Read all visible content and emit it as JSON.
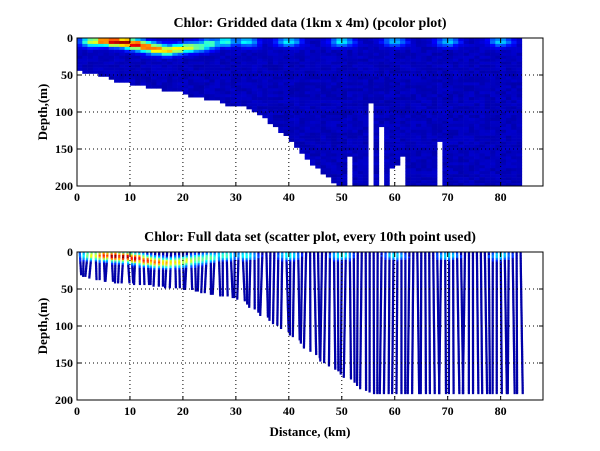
{
  "chart_data": [
    {
      "type": "heatmap",
      "title": "Chlor: Gridded data (1km x 4m) (pcolor plot)",
      "xlabel": "",
      "ylabel": "Depth,(m)",
      "xlim": [
        0,
        88
      ],
      "ylim": [
        200,
        0
      ],
      "y_inverted": true,
      "grid": true,
      "xticks": [
        "0",
        "10",
        "20",
        "30",
        "40",
        "50",
        "60",
        "70",
        "80"
      ],
      "yticks": [
        "0",
        "50",
        "100",
        "150",
        "200"
      ],
      "colormap": [
        "#00008f",
        "#0000ff",
        "#0080ff",
        "#00ffff",
        "#80ff80",
        "#ffff00",
        "#ff8000",
        "#ff0000",
        "#800000"
      ],
      "background_color": "#00008f",
      "bottom_profile": [
        [
          0,
          42
        ],
        [
          2,
          45
        ],
        [
          4,
          48
        ],
        [
          6,
          52
        ],
        [
          8,
          58
        ],
        [
          10,
          60
        ],
        [
          12,
          62
        ],
        [
          14,
          65
        ],
        [
          16,
          68
        ],
        [
          18,
          70
        ],
        [
          20,
          72
        ],
        [
          22,
          78
        ],
        [
          24,
          80
        ],
        [
          26,
          82
        ],
        [
          28,
          85
        ],
        [
          29,
          95
        ],
        [
          30,
          88
        ],
        [
          32,
          92
        ],
        [
          34,
          100
        ],
        [
          36,
          110
        ],
        [
          38,
          122
        ],
        [
          40,
          135
        ],
        [
          42,
          150
        ],
        [
          44,
          165
        ],
        [
          46,
          178
        ],
        [
          48,
          190
        ],
        [
          50,
          200
        ],
        [
          84,
          200
        ]
      ],
      "right_edge_km": 84,
      "data_gaps": [
        [
          51,
          52,
          160
        ],
        [
          55,
          56,
          85
        ],
        [
          57,
          58,
          120
        ],
        [
          59,
          60,
          175
        ],
        [
          60,
          61,
          170
        ],
        [
          61,
          62,
          160
        ],
        [
          68,
          69,
          140
        ]
      ],
      "high_concentration_band": [
        [
          3,
          5,
          0.6
        ],
        [
          5,
          4,
          0.85
        ],
        [
          7,
          5,
          1.0
        ],
        [
          9,
          6,
          1.0
        ],
        [
          11,
          9,
          0.95
        ],
        [
          13,
          12,
          0.85
        ],
        [
          15,
          15,
          0.8
        ],
        [
          17,
          17,
          0.7
        ],
        [
          19,
          15,
          0.65
        ],
        [
          21,
          13,
          0.6
        ],
        [
          23,
          12,
          0.5
        ],
        [
          25,
          8,
          0.45
        ],
        [
          28,
          5,
          0.4
        ],
        [
          32,
          5,
          0.35
        ],
        [
          40,
          5,
          0.35
        ],
        [
          50,
          5,
          0.35
        ],
        [
          60,
          5,
          0.3
        ],
        [
          70,
          5,
          0.3
        ],
        [
          80,
          5,
          0.3
        ]
      ]
    },
    {
      "type": "scatter",
      "title": "Chlor: Full data set (scatter plot, every 10th point used)",
      "xlabel": "Distance, (km)",
      "ylabel": "Depth,(m)",
      "xlim": [
        0,
        88
      ],
      "ylim": [
        200,
        0
      ],
      "y_inverted": true,
      "grid": true,
      "xticks": [
        "0",
        "10",
        "20",
        "30",
        "40",
        "50",
        "60",
        "70",
        "80"
      ],
      "yticks": [
        "0",
        "50",
        "100",
        "150",
        "200"
      ],
      "colormap": [
        "#00008f",
        "#0000ff",
        "#0080ff",
        "#00ffff",
        "#80ff80",
        "#ffff00",
        "#ff8000",
        "#ff0000",
        "#800000"
      ],
      "base_color": "#0000a8",
      "bottom_profile": [
        [
          0,
          30
        ],
        [
          2,
          33
        ],
        [
          4,
          38
        ],
        [
          6,
          40
        ],
        [
          8,
          42
        ],
        [
          10,
          42
        ],
        [
          12,
          44
        ],
        [
          14,
          45
        ],
        [
          16,
          47
        ],
        [
          18,
          48
        ],
        [
          20,
          50
        ],
        [
          22,
          52
        ],
        [
          24,
          55
        ],
        [
          26,
          58
        ],
        [
          28,
          60
        ],
        [
          30,
          62
        ],
        [
          32,
          70
        ],
        [
          34,
          80
        ],
        [
          36,
          90
        ],
        [
          38,
          100
        ],
        [
          40,
          110
        ],
        [
          42,
          120
        ],
        [
          44,
          135
        ],
        [
          46,
          145
        ],
        [
          48,
          155
        ],
        [
          50,
          165
        ],
        [
          52,
          175
        ],
        [
          54,
          185
        ],
        [
          56,
          192
        ],
        [
          84,
          192
        ]
      ],
      "cast_spacing_km": 1.5,
      "right_edge_km": 84,
      "high_concentration_band": [
        [
          3,
          5,
          0.6
        ],
        [
          5,
          5,
          0.85
        ],
        [
          7,
          6,
          1.0
        ],
        [
          9,
          7,
          1.0
        ],
        [
          11,
          9,
          0.95
        ],
        [
          13,
          12,
          0.85
        ],
        [
          15,
          14,
          0.8
        ],
        [
          17,
          15,
          0.7
        ],
        [
          19,
          14,
          0.65
        ],
        [
          21,
          12,
          0.6
        ],
        [
          23,
          10,
          0.5
        ],
        [
          25,
          8,
          0.45
        ],
        [
          28,
          5,
          0.4
        ],
        [
          32,
          5,
          0.35
        ],
        [
          40,
          5,
          0.35
        ],
        [
          50,
          5,
          0.35
        ],
        [
          60,
          5,
          0.3
        ],
        [
          70,
          5,
          0.3
        ],
        [
          80,
          5,
          0.3
        ]
      ]
    }
  ]
}
